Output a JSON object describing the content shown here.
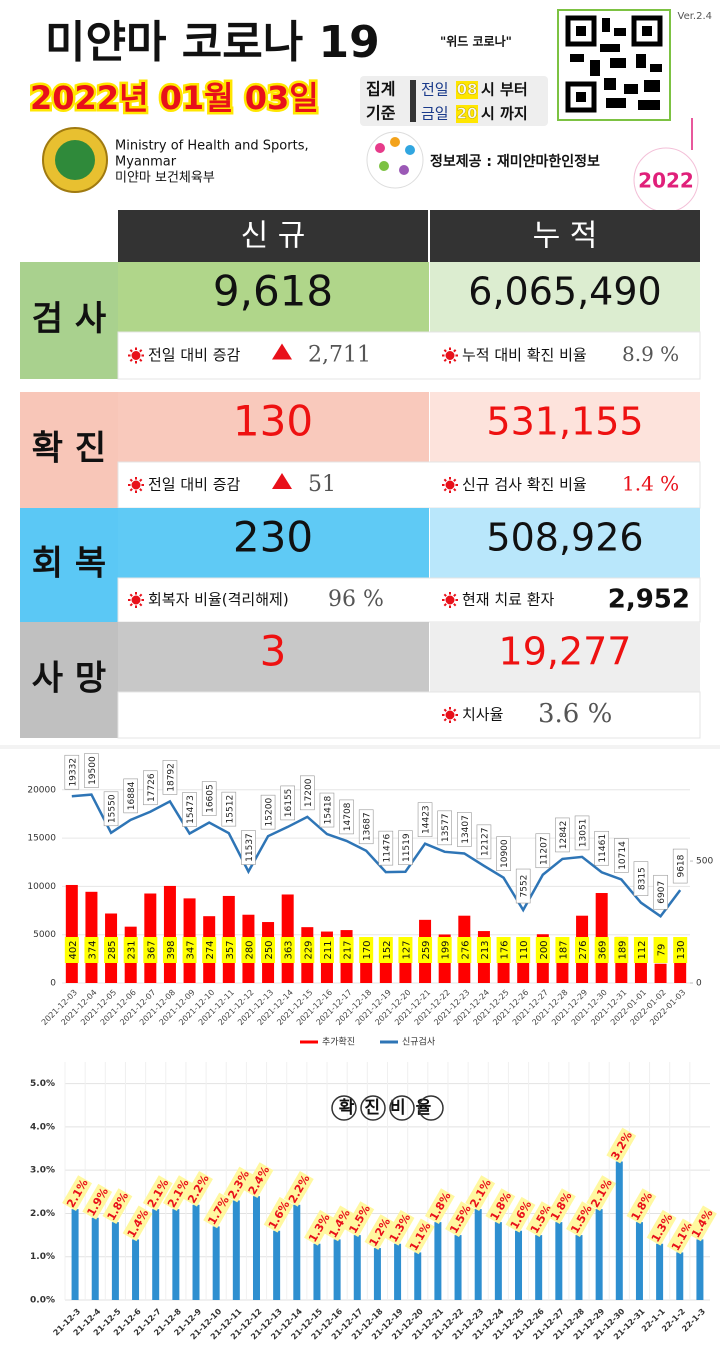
{
  "header": {
    "title": "미얀마 코로나 19",
    "subtitle": "\"위드 코로나\"",
    "version": "Ver.2.4",
    "date": "2022년 01월 03일",
    "period": {
      "label1": "집계",
      "label2": "기준",
      "from_day": "전일",
      "from_hour": "08",
      "from_suffix": "시 부터",
      "to_day": "금일",
      "to_hour": "20",
      "to_suffix": "시 까지"
    },
    "ministry_en": "Ministry of Health and Sports,",
    "ministry_en2": "Myanmar",
    "ministry_kr": "미얀마 보건체육부",
    "source": "정보제공 : 재미얀마한인정보",
    "badge": "2022"
  },
  "table": {
    "headers": [
      "신 규",
      "누 적"
    ],
    "rows": [
      {
        "label": "검 사",
        "new": "9,618",
        "total": "6,065,490",
        "new_note": "전일 대비 증감",
        "new_note_value": "2,711",
        "trend": "up",
        "total_note": "누적 대비 확진 비율",
        "total_note_value": "8.9 %",
        "label_color": "#a9d18e",
        "new_color": "#b0d68a",
        "total_color": "#dcedd0",
        "text_color": "#111111"
      },
      {
        "label": "확 진",
        "new": "130",
        "total": "531,155",
        "new_note": "전일 대비 증감",
        "new_note_value": "51",
        "trend": "up",
        "total_note": "신규 검사 확진 비율",
        "total_note_value": "1.4 %",
        "label_color": "#f8c6b8",
        "new_color": "#f9c9bc",
        "total_color": "#fde3dc",
        "text_color": "#ee1111"
      },
      {
        "label": "회 복",
        "new": "230",
        "total": "508,926",
        "new_note": "회복자 비율(격리해제)",
        "new_note_value": "96 %",
        "total_note": "현재 치료 환자",
        "total_note_value": "2,952",
        "emphasis": true,
        "label_color": "#5bc8f5",
        "new_color": "#5fcaf5",
        "total_color": "#b9e7fb",
        "text_color": "#111111"
      },
      {
        "label": "사 망",
        "new": "3",
        "total": "19,277",
        "total_note": "치사율",
        "total_note_value": "3.6 %",
        "label_color": "#c0c0c0",
        "new_color": "#c8c8c8",
        "total_color": "#eeeeee",
        "text_color": "#ee1111"
      }
    ]
  },
  "chart_data": [
    {
      "type": "combo",
      "categories": [
        "2021-12-03",
        "2021-12-04",
        "2021-12-05",
        "2021-12-06",
        "2021-12-07",
        "2021-12-08",
        "2021-12-09",
        "2021-12-10",
        "2021-12-11",
        "2021-12-12",
        "2021-12-13",
        "2021-12-14",
        "2021-12-15",
        "2021-12-16",
        "2021-12-17",
        "2021-12-18",
        "2021-12-19",
        "2021-12-20",
        "2021-12-21",
        "2021-12-22",
        "2021-12-23",
        "2021-12-24",
        "2021-12-25",
        "2021-12-26",
        "2021-12-27",
        "2021-12-28",
        "2021-12-29",
        "2021-12-30",
        "2021-12-31",
        "2022-01-01",
        "2022-01-02",
        "2022-01-03"
      ],
      "series": [
        {
          "name": "추가확진",
          "color": "#ff0000",
          "type": "bar",
          "axis": "y2",
          "values": [
            402,
            374,
            285,
            231,
            367,
            398,
            347,
            274,
            357,
            280,
            250,
            363,
            229,
            211,
            217,
            170,
            152,
            127,
            259,
            199,
            276,
            213,
            176,
            110,
            200,
            187,
            276,
            369,
            189,
            112,
            79,
            130
          ]
        },
        {
          "name": "신규검사",
          "color": "#2e75b6",
          "type": "line",
          "values": [
            19332,
            19500,
            15550,
            16884,
            17726,
            18792,
            15473,
            16605,
            15512,
            11537,
            15200,
            16155,
            17200,
            15418,
            14708,
            13687,
            11476,
            11519,
            14423,
            13577,
            13407,
            12127,
            10900,
            7552,
            11207,
            12842,
            13051,
            11461,
            10714,
            8315,
            6907,
            9618
          ]
        }
      ],
      "ylim": [
        0,
        23600
      ],
      "yticks": [
        0,
        5000,
        10000,
        15000,
        20000
      ],
      "y2lim": [
        0,
        935
      ],
      "y2ticks": [
        0,
        500
      ],
      "grid": true,
      "legend": "bottom"
    },
    {
      "type": "bar",
      "title": "확진비율",
      "categories": [
        "21-12-3",
        "21-12-4",
        "21-12-5",
        "21-12-6",
        "21-12-7",
        "21-12-8",
        "21-12-9",
        "21-12-10",
        "21-12-11",
        "21-12-12",
        "21-12-13",
        "21-12-14",
        "21-12-15",
        "21-12-16",
        "21-12-17",
        "21-12-18",
        "21-12-19",
        "21-12-20",
        "21-12-21",
        "21-12-22",
        "21-12-23",
        "21-12-24",
        "21-12-25",
        "21-12-26",
        "21-12-27",
        "21-12-28",
        "21-12-29",
        "21-12-30",
        "21-12-31",
        "22-1-1",
        "22-1-2",
        "22-1-3"
      ],
      "values": [
        2.1,
        1.9,
        1.8,
        1.4,
        2.1,
        2.1,
        2.2,
        1.7,
        2.3,
        2.4,
        1.6,
        2.2,
        1.3,
        1.4,
        1.5,
        1.2,
        1.3,
        1.1,
        1.8,
        1.5,
        2.1,
        1.8,
        1.6,
        1.5,
        1.8,
        1.5,
        2.1,
        3.2,
        1.8,
        1.3,
        1.1,
        1.4
      ],
      "value_labels": [
        "2.1%",
        "1.9%",
        "1.8%",
        "1.4%",
        "2.1%",
        "2.1%",
        "2.2%",
        "1.7%",
        "2.3%",
        "2.4%",
        "1.6%",
        "2.2%",
        "1.3%",
        "1.4%",
        "1.5%",
        "1.2%",
        "1.3%",
        "1.1%",
        "1.8%",
        "1.5%",
        "2.1%",
        "1.8%",
        "1.6%",
        "1.5%",
        "1.8%",
        "1.5%",
        "2.1%",
        "3.2%",
        "1.8%",
        "1.3%",
        "1.1%",
        "1.4%"
      ],
      "color": "#2e8fd0",
      "ylim": [
        0,
        5.5
      ],
      "yticks": [
        {
          "value": 0,
          "label": "0.0%"
        },
        {
          "value": 1,
          "label": "1.0%"
        },
        {
          "value": 2,
          "label": "2.0%"
        },
        {
          "value": 3,
          "label": "3.0%"
        },
        {
          "value": 4,
          "label": "4.0%"
        },
        {
          "value": 5,
          "label": "5.0%"
        }
      ],
      "grid": true
    }
  ]
}
